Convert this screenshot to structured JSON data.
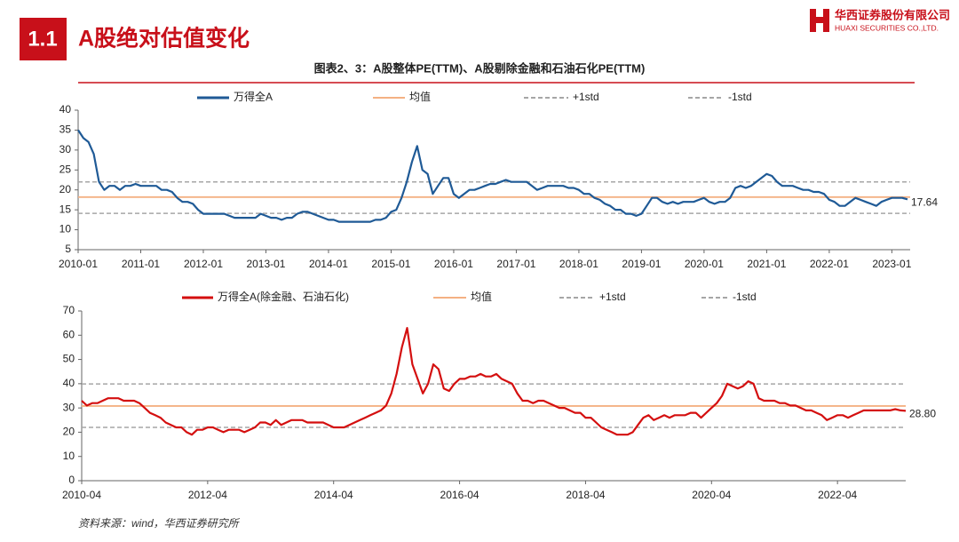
{
  "header": {
    "section": "1.1",
    "title": "A股绝对估值变化",
    "company": "华西证券股份有限公司",
    "company_en": "HUAXI SECURITIES CO.,LTD.",
    "figure_title": "图表2、3：A股整体PE(TTM)、A股剔除金融和石油石化PE(TTM)"
  },
  "source": "资料来源：wind，华西证券研究所",
  "chart_data": [
    {
      "type": "line",
      "x": [
        "2010-01",
        "2010-02",
        "2010-03",
        "2010-04",
        "2010-05",
        "2010-06",
        "2010-07",
        "2010-08",
        "2010-09",
        "2010-10",
        "2010-11",
        "2010-12",
        "2011-01",
        "2011-02",
        "2011-03",
        "2011-04",
        "2011-05",
        "2011-06",
        "2011-07",
        "2011-08",
        "2011-09",
        "2011-10",
        "2011-11",
        "2011-12",
        "2012-01",
        "2012-02",
        "2012-03",
        "2012-04",
        "2012-05",
        "2012-06",
        "2012-07",
        "2012-08",
        "2012-09",
        "2012-10",
        "2012-11",
        "2012-12",
        "2013-01",
        "2013-02",
        "2013-03",
        "2013-04",
        "2013-05",
        "2013-06",
        "2013-07",
        "2013-08",
        "2013-09",
        "2013-10",
        "2013-11",
        "2013-12",
        "2014-01",
        "2014-02",
        "2014-03",
        "2014-04",
        "2014-05",
        "2014-06",
        "2014-07",
        "2014-08",
        "2014-09",
        "2014-10",
        "2014-11",
        "2014-12",
        "2015-01",
        "2015-02",
        "2015-03",
        "2015-04",
        "2015-05",
        "2015-06",
        "2015-07",
        "2015-08",
        "2015-09",
        "2015-10",
        "2015-11",
        "2015-12",
        "2016-01",
        "2016-02",
        "2016-03",
        "2016-04",
        "2016-05",
        "2016-06",
        "2016-07",
        "2016-08",
        "2016-09",
        "2016-10",
        "2016-11",
        "2016-12",
        "2017-01",
        "2017-02",
        "2017-03",
        "2017-04",
        "2017-05",
        "2017-06",
        "2017-07",
        "2017-08",
        "2017-09",
        "2017-10",
        "2017-11",
        "2017-12",
        "2018-01",
        "2018-02",
        "2018-03",
        "2018-04",
        "2018-05",
        "2018-06",
        "2018-07",
        "2018-08",
        "2018-09",
        "2018-10",
        "2018-11",
        "2018-12",
        "2019-01",
        "2019-02",
        "2019-03",
        "2019-04",
        "2019-05",
        "2019-06",
        "2019-07",
        "2019-08",
        "2019-09",
        "2019-10",
        "2019-11",
        "2019-12",
        "2020-01",
        "2020-02",
        "2020-03",
        "2020-04",
        "2020-05",
        "2020-06",
        "2020-07",
        "2020-08",
        "2020-09",
        "2020-10",
        "2020-11",
        "2020-12",
        "2021-01",
        "2021-02",
        "2021-03",
        "2021-04",
        "2021-05",
        "2021-06",
        "2021-07",
        "2021-08",
        "2021-09",
        "2021-10",
        "2021-11",
        "2021-12",
        "2022-01",
        "2022-02",
        "2022-03",
        "2022-04",
        "2022-05",
        "2022-06",
        "2022-07",
        "2022-08",
        "2022-09",
        "2022-10",
        "2022-11",
        "2022-12",
        "2023-01",
        "2023-02",
        "2023-03",
        "2023-04"
      ],
      "series": [
        {
          "name": "万得全A",
          "color": "#1f5a96",
          "values": [
            35,
            33,
            32,
            29,
            22,
            20,
            21,
            21,
            20,
            21,
            21,
            21.5,
            21,
            21,
            21,
            21,
            20,
            20,
            19.5,
            18,
            17,
            17,
            16.5,
            15,
            14,
            14,
            14,
            14,
            14,
            13.5,
            13,
            13,
            13,
            13,
            13,
            14,
            13.5,
            13,
            13,
            12.5,
            13,
            13,
            14,
            14.5,
            14.5,
            14,
            13.5,
            13,
            12.5,
            12.5,
            12,
            12,
            12,
            12,
            12,
            12,
            12,
            12.5,
            12.5,
            13,
            14.5,
            15,
            18,
            22,
            27,
            31,
            25,
            24,
            19,
            21,
            23,
            23,
            19,
            18,
            19,
            20,
            20,
            20.5,
            21,
            21.5,
            21.5,
            22,
            22.5,
            22,
            22,
            22,
            22,
            21,
            20,
            20.5,
            21,
            21,
            21,
            21,
            20.5,
            20.5,
            20,
            19,
            19,
            18,
            17.5,
            16.5,
            16,
            15,
            15,
            14,
            14,
            13.5,
            14,
            16,
            18,
            18,
            17,
            16.5,
            17,
            16.5,
            17,
            17,
            17,
            17.5,
            18,
            17,
            16.5,
            17,
            17,
            18,
            20.5,
            21,
            20.5,
            21,
            22,
            23,
            24,
            23.5,
            22,
            21,
            21,
            21,
            20.5,
            20,
            20,
            19.5,
            19.5,
            19,
            17.5,
            17,
            16,
            16,
            17,
            18,
            17.5,
            17,
            16.5,
            16,
            17,
            17.5,
            18,
            18,
            18,
            17.64
          ]
        }
      ],
      "ref_lines": [
        {
          "name": "均值",
          "value": 18.2,
          "color": "#f4b183",
          "dash": false
        },
        {
          "name": "+1std",
          "value": 22,
          "color": "#a6a6a6",
          "dash": true
        },
        {
          "name": "-1std",
          "value": 14.1,
          "color": "#a6a6a6",
          "dash": true
        }
      ],
      "ylim": [
        5,
        40
      ],
      "yticks": [
        5,
        10,
        15,
        20,
        25,
        30,
        35,
        40
      ],
      "xticks": [
        "2010-01",
        "2011-01",
        "2012-01",
        "2013-01",
        "2014-01",
        "2015-01",
        "2016-01",
        "2017-01",
        "2018-01",
        "2019-01",
        "2020-01",
        "2021-01",
        "2022-01",
        "2023-01"
      ]
    },
    {
      "type": "line",
      "x": [
        "2010-04",
        "2010-05",
        "2010-06",
        "2010-07",
        "2010-08",
        "2010-09",
        "2010-10",
        "2010-11",
        "2010-12",
        "2011-01",
        "2011-02",
        "2011-03",
        "2011-04",
        "2011-05",
        "2011-06",
        "2011-07",
        "2011-08",
        "2011-09",
        "2011-10",
        "2011-11",
        "2011-12",
        "2012-01",
        "2012-02",
        "2012-03",
        "2012-04",
        "2012-05",
        "2012-06",
        "2012-07",
        "2012-08",
        "2012-09",
        "2012-10",
        "2012-11",
        "2012-12",
        "2013-01",
        "2013-02",
        "2013-03",
        "2013-04",
        "2013-05",
        "2013-06",
        "2013-07",
        "2013-08",
        "2013-09",
        "2013-10",
        "2013-11",
        "2013-12",
        "2014-01",
        "2014-02",
        "2014-03",
        "2014-04",
        "2014-05",
        "2014-06",
        "2014-07",
        "2014-08",
        "2014-09",
        "2014-10",
        "2014-11",
        "2014-12",
        "2015-01",
        "2015-02",
        "2015-03",
        "2015-04",
        "2015-05",
        "2015-06",
        "2015-07",
        "2015-08",
        "2015-09",
        "2015-10",
        "2015-11",
        "2015-12",
        "2016-01",
        "2016-02",
        "2016-03",
        "2016-04",
        "2016-05",
        "2016-06",
        "2016-07",
        "2016-08",
        "2016-09",
        "2016-10",
        "2016-11",
        "2016-12",
        "2017-01",
        "2017-02",
        "2017-03",
        "2017-04",
        "2017-05",
        "2017-06",
        "2017-07",
        "2017-08",
        "2017-09",
        "2017-10",
        "2017-11",
        "2017-12",
        "2018-01",
        "2018-02",
        "2018-03",
        "2018-04",
        "2018-05",
        "2018-06",
        "2018-07",
        "2018-08",
        "2018-09",
        "2018-10",
        "2018-11",
        "2018-12",
        "2019-01",
        "2019-02",
        "2019-03",
        "2019-04",
        "2019-05",
        "2019-06",
        "2019-07",
        "2019-08",
        "2019-09",
        "2019-10",
        "2019-11",
        "2019-12",
        "2020-01",
        "2020-02",
        "2020-03",
        "2020-04",
        "2020-05",
        "2020-06",
        "2020-07",
        "2020-08",
        "2020-09",
        "2020-10",
        "2020-11",
        "2020-12",
        "2021-01",
        "2021-02",
        "2021-03",
        "2021-04",
        "2021-05",
        "2021-06",
        "2021-07",
        "2021-08",
        "2021-09",
        "2021-10",
        "2021-11",
        "2021-12",
        "2022-01",
        "2022-02",
        "2022-03",
        "2022-04",
        "2022-05",
        "2022-06",
        "2022-07",
        "2022-08",
        "2022-09",
        "2022-10",
        "2022-11",
        "2022-12",
        "2023-01",
        "2023-02",
        "2023-03",
        "2023-04",
        "2023-05"
      ],
      "series": [
        {
          "name": "万得全A(除金融、石油石化)",
          "color": "#d40f0f",
          "end_label": "28.80",
          "values": [
            33,
            31,
            32,
            32,
            33,
            34,
            34,
            34,
            33,
            33,
            33,
            32,
            30,
            28,
            27,
            26,
            24,
            23,
            22,
            22,
            20,
            19,
            21,
            21,
            22,
            22,
            21,
            20,
            21,
            21,
            21,
            20,
            21,
            22,
            24,
            24,
            23,
            25,
            23,
            24,
            25,
            25,
            25,
            24,
            24,
            24,
            24,
            23,
            22,
            22,
            22,
            23,
            24,
            25,
            26,
            27,
            28,
            29,
            31,
            36,
            44,
            55,
            63,
            48,
            42,
            36,
            40,
            48,
            46,
            38,
            37,
            40,
            42,
            42,
            43,
            43,
            44,
            43,
            43,
            44,
            42,
            41,
            40,
            36,
            33,
            33,
            32,
            33,
            33,
            32,
            31,
            30,
            30,
            29,
            28,
            28,
            26,
            26,
            24,
            22,
            21,
            20,
            19,
            19,
            19,
            20,
            23,
            26,
            27,
            25,
            26,
            27,
            26,
            27,
            27,
            27,
            28,
            28,
            26,
            28,
            30,
            32,
            35,
            40,
            39,
            38,
            39,
            41,
            40,
            34,
            33,
            33,
            33,
            32,
            32,
            31,
            31,
            30,
            29,
            29,
            28,
            27,
            25,
            26,
            27,
            27,
            26,
            27,
            28,
            29,
            29,
            29,
            29,
            29,
            29,
            29.5,
            29,
            28.8
          ]
        }
      ],
      "ref_lines": [
        {
          "name": "均值",
          "value": 30.8,
          "color": "#f4b183",
          "dash": false
        },
        {
          "name": "+1std",
          "value": 39.9,
          "color": "#a6a6a6",
          "dash": true
        },
        {
          "name": "-1std",
          "value": 22,
          "color": "#a6a6a6",
          "dash": true
        }
      ],
      "ylim": [
        0,
        70
      ],
      "yticks": [
        0,
        10,
        20,
        30,
        40,
        50,
        60,
        70
      ],
      "xticks": [
        "2010-04",
        "2012-04",
        "2014-04",
        "2016-04",
        "2018-04",
        "2020-04",
        "2022-04"
      ]
    }
  ]
}
